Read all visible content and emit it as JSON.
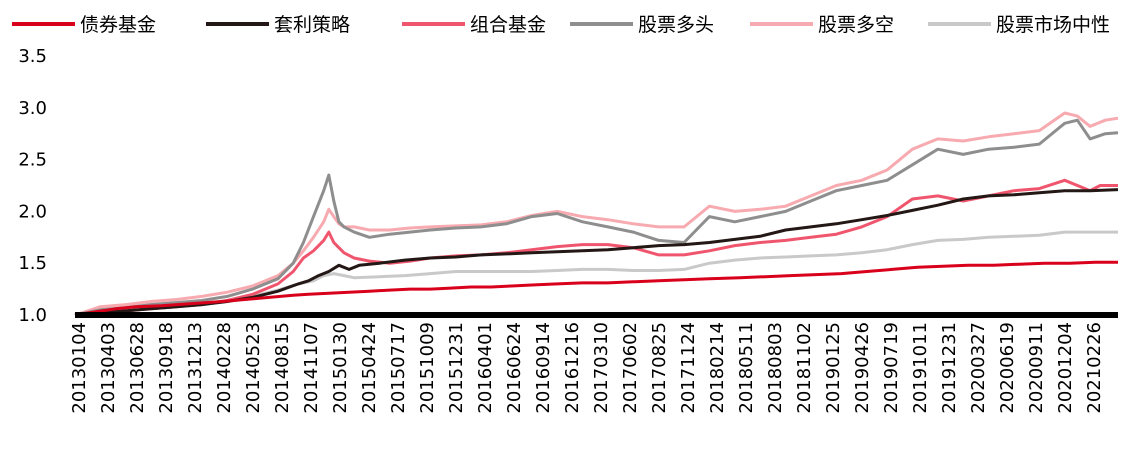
{
  "chart_data": {
    "type": "line",
    "title": "",
    "xlabel": "",
    "ylabel": "",
    "ylim": [
      1.0,
      3.5
    ],
    "yticks": [
      "1.0",
      "1.5",
      "2.0",
      "2.5",
      "3.0",
      "3.5"
    ],
    "x_tick_labels": [
      "20130104",
      "20130403",
      "20130628",
      "20130918",
      "20131213",
      "20140228",
      "20140523",
      "20140815",
      "20141107",
      "20150130",
      "20150424",
      "20150717",
      "20151009",
      "20151231",
      "20160401",
      "20160624",
      "20160914",
      "20161216",
      "20170310",
      "20170602",
      "20170825",
      "20171124",
      "20180214",
      "20180511",
      "20180803",
      "20181102",
      "20190125",
      "20190426",
      "20190719",
      "20191011",
      "20191231",
      "20200327",
      "20200619",
      "20200911",
      "20201204",
      "20210226"
    ],
    "legend_position": "top",
    "grid": false,
    "series": [
      {
        "name": "债券基金",
        "color": "#d9001b",
        "width": 3,
        "x": [
          0,
          8,
          16,
          24,
          34,
          46,
          58,
          72,
          86,
          92,
          100,
          108,
          116,
          124,
          132,
          140,
          148,
          156,
          164,
          172,
          180,
          190,
          200,
          210,
          220,
          230,
          240,
          250,
          262,
          272,
          282,
          292,
          302,
          312,
          322,
          332,
          342,
          352,
          362,
          372,
          382,
          392,
          402,
          411
        ],
        "values": [
          1.0,
          1.03,
          1.06,
          1.08,
          1.09,
          1.11,
          1.13,
          1.16,
          1.19,
          1.2,
          1.21,
          1.22,
          1.23,
          1.24,
          1.25,
          1.25,
          1.26,
          1.27,
          1.27,
          1.28,
          1.29,
          1.3,
          1.31,
          1.31,
          1.32,
          1.33,
          1.34,
          1.35,
          1.36,
          1.37,
          1.38,
          1.39,
          1.4,
          1.42,
          1.44,
          1.46,
          1.47,
          1.48,
          1.48,
          1.49,
          1.5,
          1.5,
          1.51,
          1.51
        ]
      },
      {
        "name": "套利策略",
        "color": "#231815",
        "width": 3,
        "x": [
          0,
          10,
          20,
          30,
          40,
          50,
          60,
          70,
          80,
          88,
          92,
          96,
          100,
          104,
          108,
          112,
          120,
          130,
          140,
          150,
          160,
          170,
          180,
          190,
          200,
          210,
          220,
          230,
          240,
          250,
          260,
          270,
          280,
          290,
          300,
          310,
          320,
          330,
          340,
          350,
          360,
          370,
          380,
          390,
          400,
          411
        ],
        "values": [
          1.0,
          1.02,
          1.04,
          1.06,
          1.08,
          1.1,
          1.13,
          1.17,
          1.23,
          1.3,
          1.33,
          1.38,
          1.42,
          1.48,
          1.44,
          1.48,
          1.5,
          1.53,
          1.55,
          1.56,
          1.58,
          1.59,
          1.6,
          1.61,
          1.62,
          1.63,
          1.65,
          1.67,
          1.68,
          1.7,
          1.73,
          1.76,
          1.82,
          1.85,
          1.88,
          1.92,
          1.96,
          2.01,
          2.06,
          2.12,
          2.15,
          2.16,
          2.18,
          2.2,
          2.2,
          2.21
        ]
      },
      {
        "name": "组合基金",
        "color": "#f0556e",
        "width": 3,
        "x": [
          0,
          10,
          20,
          30,
          40,
          50,
          60,
          70,
          80,
          86,
          90,
          94,
          98,
          100,
          102,
          104,
          106,
          110,
          116,
          124,
          132,
          140,
          150,
          160,
          170,
          180,
          190,
          200,
          210,
          220,
          230,
          240,
          250,
          260,
          270,
          280,
          290,
          300,
          310,
          320,
          330,
          340,
          350,
          360,
          370,
          380,
          390,
          396,
          400,
          404,
          411
        ],
        "values": [
          1.0,
          1.02,
          1.04,
          1.06,
          1.08,
          1.1,
          1.14,
          1.2,
          1.3,
          1.42,
          1.55,
          1.62,
          1.72,
          1.8,
          1.7,
          1.65,
          1.6,
          1.55,
          1.52,
          1.5,
          1.52,
          1.55,
          1.57,
          1.58,
          1.6,
          1.63,
          1.66,
          1.68,
          1.68,
          1.65,
          1.58,
          1.58,
          1.62,
          1.67,
          1.7,
          1.72,
          1.75,
          1.78,
          1.85,
          1.95,
          2.12,
          2.15,
          2.1,
          2.15,
          2.2,
          2.22,
          2.3,
          2.24,
          2.2,
          2.25,
          2.25
        ]
      },
      {
        "name": "股票多头",
        "color": "#8e8e8e",
        "width": 3,
        "x": [
          0,
          10,
          20,
          30,
          40,
          50,
          60,
          70,
          80,
          86,
          90,
          94,
          98,
          100,
          102,
          104,
          106,
          110,
          116,
          124,
          132,
          140,
          150,
          160,
          170,
          180,
          190,
          200,
          210,
          220,
          230,
          240,
          250,
          260,
          270,
          280,
          290,
          300,
          310,
          320,
          330,
          340,
          350,
          360,
          370,
          380,
          390,
          395,
          400,
          406,
          411
        ],
        "values": [
          1.0,
          1.05,
          1.07,
          1.1,
          1.12,
          1.14,
          1.18,
          1.25,
          1.35,
          1.5,
          1.7,
          1.95,
          2.2,
          2.35,
          2.1,
          1.9,
          1.85,
          1.8,
          1.75,
          1.78,
          1.8,
          1.82,
          1.84,
          1.85,
          1.88,
          1.95,
          1.98,
          1.9,
          1.85,
          1.8,
          1.72,
          1.7,
          1.95,
          1.9,
          1.95,
          2.0,
          2.1,
          2.2,
          2.25,
          2.3,
          2.45,
          2.6,
          2.55,
          2.6,
          2.62,
          2.65,
          2.85,
          2.88,
          2.7,
          2.75,
          2.76
        ]
      },
      {
        "name": "股票多空",
        "color": "#f7aaaf",
        "width": 3,
        "x": [
          0,
          10,
          20,
          30,
          40,
          50,
          60,
          70,
          80,
          86,
          90,
          94,
          98,
          100,
          102,
          104,
          106,
          110,
          116,
          124,
          132,
          140,
          150,
          160,
          170,
          180,
          190,
          200,
          210,
          220,
          230,
          240,
          250,
          260,
          270,
          280,
          290,
          300,
          310,
          320,
          330,
          340,
          350,
          360,
          370,
          380,
          390,
          395,
          400,
          406,
          411
        ],
        "values": [
          1.0,
          1.08,
          1.1,
          1.13,
          1.15,
          1.18,
          1.22,
          1.28,
          1.38,
          1.5,
          1.62,
          1.75,
          1.9,
          2.02,
          1.95,
          1.88,
          1.85,
          1.85,
          1.82,
          1.82,
          1.84,
          1.85,
          1.86,
          1.87,
          1.9,
          1.96,
          2.0,
          1.95,
          1.92,
          1.88,
          1.85,
          1.85,
          2.05,
          2.0,
          2.02,
          2.05,
          2.15,
          2.25,
          2.3,
          2.4,
          2.6,
          2.7,
          2.68,
          2.72,
          2.75,
          2.78,
          2.95,
          2.92,
          2.82,
          2.88,
          2.9
        ]
      },
      {
        "name": "股票市场中性",
        "color": "#c9c9c9",
        "width": 3,
        "x": [
          0,
          10,
          20,
          30,
          40,
          50,
          60,
          70,
          80,
          88,
          94,
          98,
          102,
          106,
          110,
          120,
          130,
          140,
          150,
          160,
          170,
          180,
          190,
          200,
          210,
          220,
          230,
          240,
          250,
          260,
          270,
          280,
          290,
          300,
          310,
          320,
          330,
          340,
          350,
          360,
          370,
          380,
          390,
          400,
          411
        ],
        "values": [
          1.0,
          1.03,
          1.05,
          1.07,
          1.09,
          1.11,
          1.14,
          1.18,
          1.24,
          1.3,
          1.33,
          1.38,
          1.4,
          1.38,
          1.36,
          1.37,
          1.38,
          1.4,
          1.42,
          1.42,
          1.42,
          1.42,
          1.43,
          1.44,
          1.44,
          1.43,
          1.43,
          1.44,
          1.5,
          1.53,
          1.55,
          1.56,
          1.57,
          1.58,
          1.6,
          1.63,
          1.68,
          1.72,
          1.73,
          1.75,
          1.76,
          1.77,
          1.8,
          1.8,
          1.8
        ]
      }
    ]
  }
}
